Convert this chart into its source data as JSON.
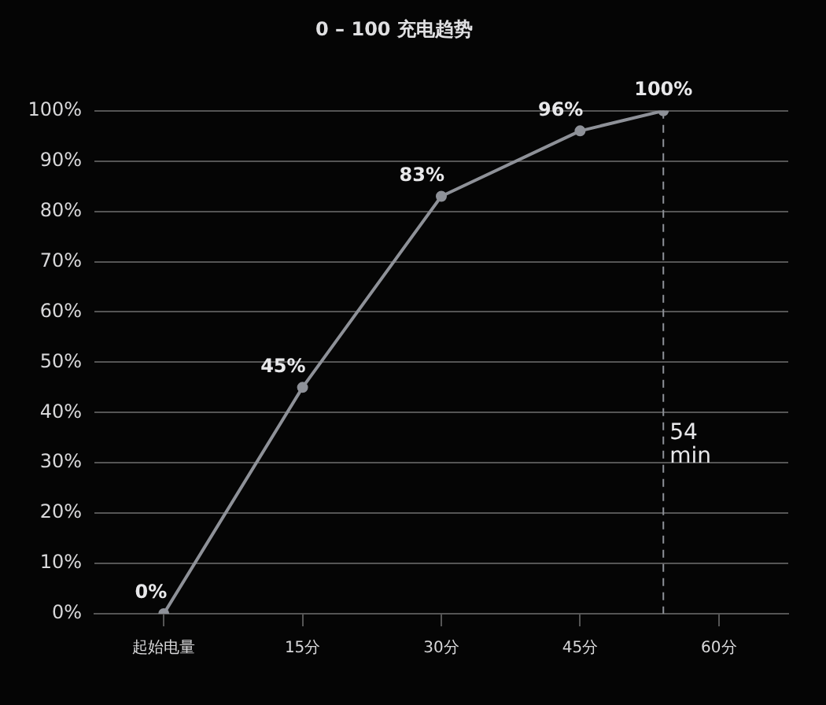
{
  "chart_data": {
    "type": "line",
    "title": "0 – 100 充电趋势",
    "x": [
      0,
      15,
      30,
      45,
      54
    ],
    "series": [
      {
        "color": "#8e9198",
        "values": [
          0,
          45,
          83,
          96,
          100
        ],
        "value_labels": [
          "0%",
          "45%",
          "83%",
          "96%",
          "100%"
        ]
      }
    ],
    "xlim": [
      -7.5,
      67.5
    ],
    "xticks": [
      {
        "value": 0,
        "label": "起始电量"
      },
      {
        "value": 15,
        "label": "15分"
      },
      {
        "value": 30,
        "label": "30分"
      },
      {
        "value": 45,
        "label": "45分"
      },
      {
        "value": 60,
        "label": "60分"
      }
    ],
    "ylim": [
      0,
      100
    ],
    "yticks": [
      {
        "value": 0,
        "label": "0%"
      },
      {
        "value": 10,
        "label": "10%"
      },
      {
        "value": 20,
        "label": "20%"
      },
      {
        "value": 30,
        "label": "30%"
      },
      {
        "value": 40,
        "label": "40%"
      },
      {
        "value": 50,
        "label": "50%"
      },
      {
        "value": 60,
        "label": "60%"
      },
      {
        "value": 70,
        "label": "70%"
      },
      {
        "value": 80,
        "label": "80%"
      },
      {
        "value": 90,
        "label": "90%"
      },
      {
        "value": 100,
        "label": "100%"
      }
    ],
    "ref_lines": [
      {
        "axis": "x",
        "value": 54,
        "label": "54 min",
        "color": "#8e9198",
        "line_style": "dashed"
      }
    ],
    "grid": "y",
    "legend": false,
    "marker": "circle",
    "line_style": "solid"
  }
}
